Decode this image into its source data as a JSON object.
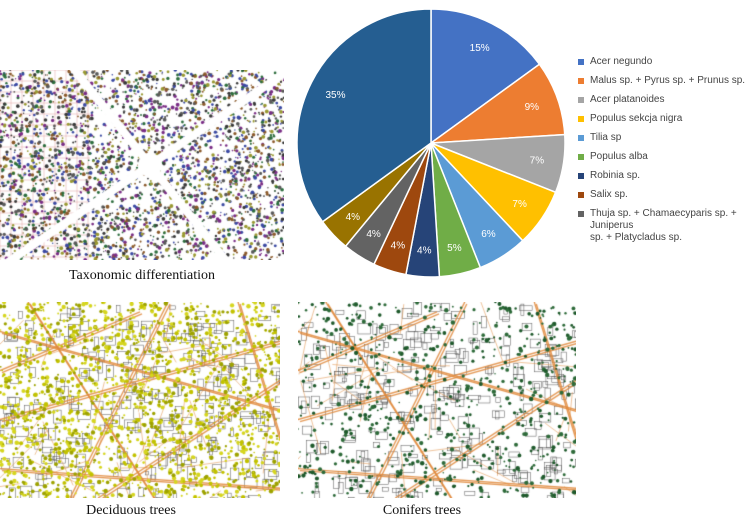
{
  "captions": {
    "taxonomic": "Taxonomic   differentiation",
    "deciduous": "Deciduous  trees",
    "conifers": "Conifers  trees"
  },
  "maps": {
    "taxonomic": {
      "background": "#ffffff",
      "palette": [
        "#3a3a3a",
        "#7a2e86",
        "#2d6e3e",
        "#8b5a2b",
        "#3b4aa3",
        "#9a9a33",
        "#5a5a5a"
      ]
    },
    "deciduous": {
      "background": "#ffffff",
      "tree_color": "#c2c200",
      "road_color": "#e08a3c"
    },
    "conifers": {
      "background": "#ffffff",
      "tree_color": "#2e6b3a",
      "road_color": "#e08a3c"
    }
  },
  "chart_data": {
    "type": "pie",
    "start_angle_deg": 90,
    "direction": "clockwise",
    "label_color_light": "#ffffff",
    "legend_position": "right",
    "slices": [
      {
        "name": "Acer negundo",
        "value": 15,
        "label": "15%",
        "color": "#4472c4"
      },
      {
        "name": "Malus sp. + Pyrus sp. + Prunus sp.",
        "value": 9,
        "label": "9%",
        "color": "#ed7d31"
      },
      {
        "name": "Acer platanoides",
        "value": 7,
        "label": "7%",
        "color": "#a5a5a5"
      },
      {
        "name": "Populus sekcja nigra",
        "value": 7,
        "label": "7%",
        "color": "#ffc000"
      },
      {
        "name": "Tilia sp",
        "value": 6,
        "label": "6%",
        "color": "#5b9bd5"
      },
      {
        "name": "Populus alba",
        "value": 5,
        "label": "5%",
        "color": "#70ad47"
      },
      {
        "name": "Robinia sp.",
        "value": 4,
        "label": "4%",
        "color": "#264478"
      },
      {
        "name": "Salix sp.",
        "value": 4,
        "label": "4%",
        "color": "#9e480e"
      },
      {
        "name": "Thuja sp. + Chamaecyparis sp. + Juniperus",
        "name_line2": "sp. + Platycladus sp.",
        "value": 4,
        "label": "4%",
        "color": "#636363"
      },
      {
        "name": "",
        "value": 4,
        "label": "4%",
        "color": "#997300"
      },
      {
        "name": "",
        "value": 35,
        "label": "35%",
        "color": "#255e91"
      }
    ]
  }
}
